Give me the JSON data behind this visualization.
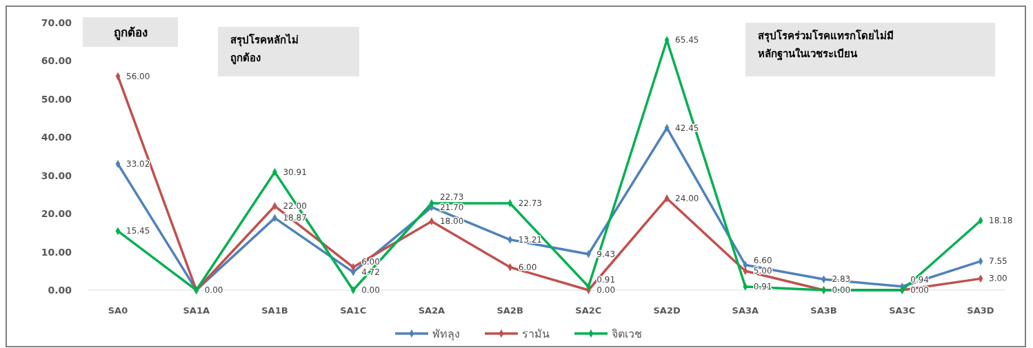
{
  "chart_data": {
    "type": "line",
    "categories": [
      "SA0",
      "SA1A",
      "SA1B",
      "SA1C",
      "SA2A",
      "SA2B",
      "SA2C",
      "SA2D",
      "SA3A",
      "SA3B",
      "SA3C",
      "SA3D"
    ],
    "series": [
      {
        "name": "พัทลุง",
        "color": "#4f81bd",
        "values": [
          33.02,
          0.0,
          18.87,
          4.72,
          21.7,
          13.21,
          9.43,
          42.45,
          6.6,
          2.83,
          0.94,
          7.55
        ],
        "value_labels": [
          "33.02",
          "0.00",
          "18.87",
          "4.72",
          "21.70",
          "13.21",
          "9.43",
          "42.45",
          "6.60",
          "2.83",
          "0.94",
          "7.55"
        ]
      },
      {
        "name": "รามัน",
        "color": "#c0504d",
        "values": [
          56.0,
          0.0,
          22.0,
          6.0,
          18.0,
          6.0,
          0.0,
          24.0,
          5.0,
          0.0,
          0.0,
          3.0
        ],
        "value_labels": [
          "56.00",
          null,
          "22.00",
          "6.00",
          "18.00",
          "6.00",
          "0.00",
          "24.00",
          "5.00",
          "0.00",
          "0.00",
          "3.00"
        ]
      },
      {
        "name": "จิตเวช",
        "color": "#00b050",
        "values": [
          15.45,
          0.0,
          30.91,
          0.0,
          22.73,
          22.73,
          0.91,
          65.45,
          0.91,
          0.0,
          0.0,
          18.18
        ],
        "value_labels": [
          "15.45",
          null,
          "30.91",
          "0.00",
          "22.73",
          "22.73",
          "0.91",
          "65.45",
          "0.91",
          null,
          null,
          "18.18"
        ]
      }
    ],
    "ylim": [
      0,
      70
    ],
    "yticks": [
      {
        "value": 0,
        "label": "0.00"
      },
      {
        "value": 10,
        "label": "10.00"
      },
      {
        "value": 20,
        "label": "20.00"
      },
      {
        "value": 30,
        "label": "30.00"
      },
      {
        "value": 40,
        "label": "40.00"
      },
      {
        "value": 50,
        "label": "50.00"
      },
      {
        "value": 60,
        "label": "60.00"
      },
      {
        "value": 70,
        "label": "70.00"
      }
    ],
    "grid": false,
    "legend": "bottom",
    "marker": "diamond",
    "line_style": "solid",
    "annotations": [
      "ถูกต้อง",
      "สรุปโรคหลักไม่\nถูกต้อง",
      "สรุปโรคร่วมโรคแทรกโดยไม่มี\nหลักฐานในเวชระเบียน"
    ]
  }
}
